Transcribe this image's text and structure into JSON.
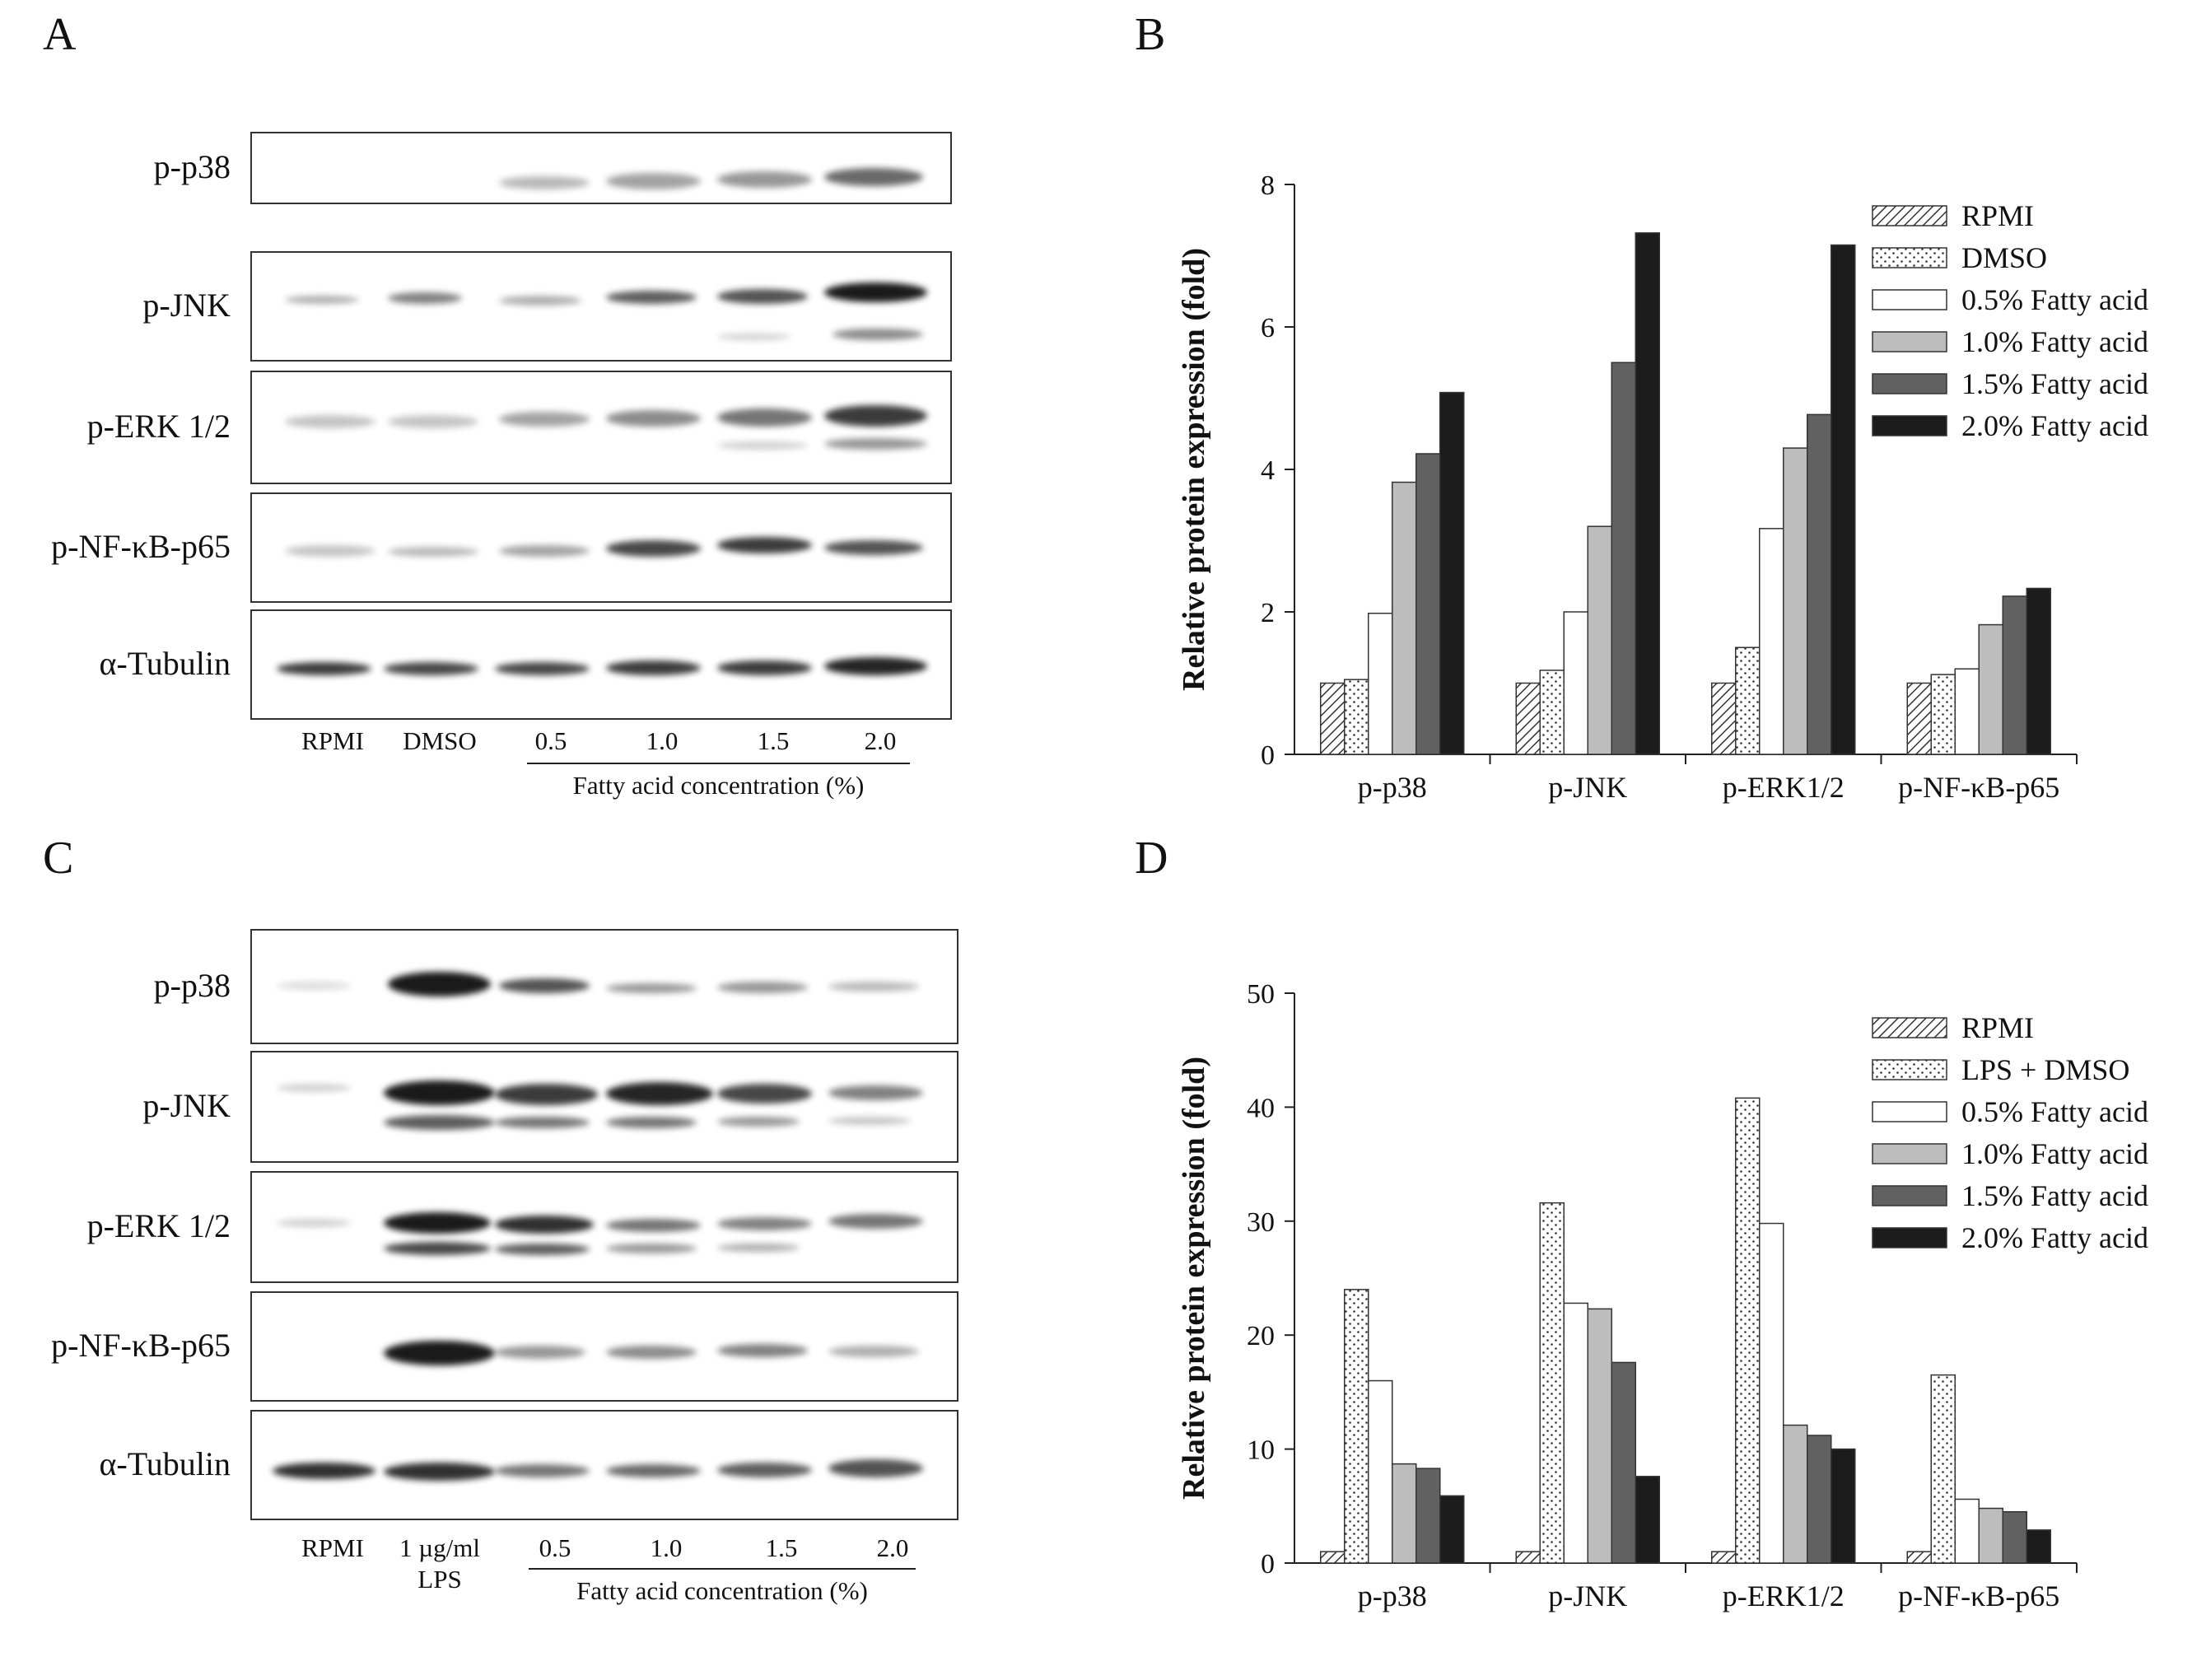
{
  "panels": {
    "A": {
      "letter": "A",
      "rows": [
        "p-p38",
        "p-JNK",
        "p-ERK 1/2",
        "p-NF-κB-p65",
        "α-Tubulin"
      ],
      "lanes": [
        "RPMI",
        "DMSO",
        "0.5",
        "1.0",
        "1.5",
        "2.0"
      ],
      "group_label": "Fatty acid concentration (%)"
    },
    "B": {
      "letter": "B"
    },
    "C": {
      "letter": "C",
      "rows": [
        "p-p38",
        "p-JNK",
        "p-ERK 1/2",
        "p-NF-κB-p65",
        "α-Tubulin"
      ],
      "lanes": [
        "RPMI",
        "1 µg/ml",
        "0.5",
        "1.0",
        "1.5",
        "2.0"
      ],
      "lane2_sub": "LPS",
      "group_label": "Fatty acid concentration (%)"
    },
    "D": {
      "letter": "D"
    }
  },
  "chart_data": [
    {
      "type": "bar",
      "panel": "B",
      "ylabel": "Relative protein expression (fold)",
      "categories": [
        "p-p38",
        "p-JNK",
        "p-ERK1/2",
        "p-NF-κB-p65"
      ],
      "ylim": [
        0,
        8
      ],
      "yticks": [
        0,
        2,
        4,
        6,
        8
      ],
      "legend_position": "top-right",
      "series": [
        {
          "name": "RPMI",
          "values": [
            1.0,
            1.0,
            1.0,
            1.0
          ]
        },
        {
          "name": "DMSO",
          "values": [
            1.05,
            1.18,
            1.5,
            1.12
          ]
        },
        {
          "name": "0.5% Fatty acid",
          "values": [
            1.98,
            2.0,
            3.17,
            1.2
          ]
        },
        {
          "name": "1.0% Fatty acid",
          "values": [
            3.82,
            3.2,
            4.3,
            1.82
          ]
        },
        {
          "name": "1.5% Fatty acid",
          "values": [
            4.22,
            5.5,
            4.77,
            2.22
          ]
        },
        {
          "name": "2.0% Fatty acid",
          "values": [
            5.08,
            7.32,
            7.15,
            2.33
          ]
        }
      ],
      "fills": [
        "hatch",
        "dots",
        "#ffffff",
        "#bdbdbd",
        "#616161",
        "#1c1c1c"
      ]
    },
    {
      "type": "bar",
      "panel": "D",
      "ylabel": "Relative protein expression (fold)",
      "categories": [
        "p-p38",
        "p-JNK",
        "p-ERK1/2",
        "p-NF-κB-p65"
      ],
      "ylim": [
        0,
        50
      ],
      "yticks": [
        0,
        10,
        20,
        30,
        40,
        50
      ],
      "legend_position": "top-right",
      "series": [
        {
          "name": "RPMI",
          "values": [
            1.0,
            1.0,
            1.0,
            1.0
          ]
        },
        {
          "name": "LPS + DMSO",
          "values": [
            24.0,
            31.6,
            40.8,
            16.5
          ]
        },
        {
          "name": "0.5% Fatty acid",
          "values": [
            16.0,
            22.8,
            29.8,
            5.6
          ]
        },
        {
          "name": "1.0% Fatty acid",
          "values": [
            8.7,
            22.3,
            12.1,
            4.8
          ]
        },
        {
          "name": "1.5% Fatty acid",
          "values": [
            8.3,
            17.6,
            11.2,
            4.5
          ]
        },
        {
          "name": "2.0% Fatty acid",
          "values": [
            5.9,
            7.6,
            10.0,
            2.9
          ]
        }
      ],
      "fills": [
        "hatch",
        "dots",
        "#ffffff",
        "#bdbdbd",
        "#616161",
        "#1c1c1c"
      ]
    }
  ]
}
